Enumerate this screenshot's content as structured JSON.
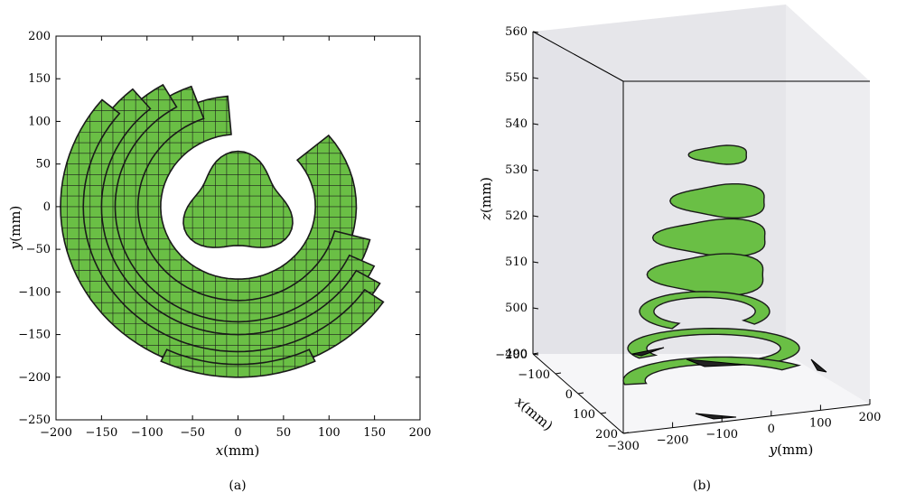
{
  "chart_data": [
    {
      "type": "scatter",
      "caption": "(a)",
      "xlabel_var": "x",
      "xlabel_unit": "(mm)",
      "ylabel_var": "y",
      "ylabel_unit": "(mm)",
      "xlim": [
        -200,
        200
      ],
      "ylim": [
        -250,
        200
      ],
      "xticks": [
        -200,
        -150,
        -100,
        -50,
        0,
        50,
        100,
        150,
        200
      ],
      "yticks": [
        -250,
        -200,
        -150,
        -100,
        -50,
        0,
        50,
        100,
        150,
        200
      ],
      "fill_color": "#6abf45",
      "edge_color": "#1a1a1a",
      "regions": [
        {
          "center": [
            0,
            0
          ],
          "r_inner": 0,
          "r_outer": 65,
          "arc_deg": [
            0,
            360
          ]
        },
        {
          "center": [
            0,
            0
          ],
          "r_inner": 85,
          "r_outer": 130,
          "arc_deg": [
            95,
            400
          ]
        },
        {
          "center": [
            0,
            0
          ],
          "r_inner": 110,
          "r_outer": 150,
          "arc_deg": [
            110,
            345
          ]
        },
        {
          "center": [
            0,
            0
          ],
          "r_inner": 135,
          "r_outer": 165,
          "arc_deg": [
            120,
            335
          ]
        },
        {
          "center": [
            0,
            0
          ],
          "r_inner": 150,
          "r_outer": 180,
          "arc_deg": [
            130,
            330
          ]
        },
        {
          "center": [
            0,
            0
          ],
          "r_inner": 170,
          "r_outer": 195,
          "arc_deg": [
            140,
            325
          ]
        },
        {
          "center": [
            0,
            0
          ],
          "r_inner": 185,
          "r_outer": 200,
          "arc_deg": [
            245,
            295
          ]
        }
      ],
      "grid": false
    },
    {
      "type": "scatter",
      "caption": "(b)",
      "xlabel_var": "x",
      "xlabel_unit": "(mm)",
      "ylabel_var": "y",
      "ylabel_unit": "(mm)",
      "zlabel_var": "z",
      "zlabel_unit": "(mm)",
      "xlim": [
        -200,
        200
      ],
      "ylim": [
        -300,
        200
      ],
      "zlim": [
        490,
        560
      ],
      "xticks": [
        -200,
        -100,
        0,
        100,
        200
      ],
      "yticks": [
        -300,
        -200,
        -100,
        0,
        100,
        200
      ],
      "zticks": [
        490,
        500,
        510,
        520,
        530,
        540,
        550,
        560
      ],
      "fill_color": "#6abf45",
      "edge_color": "#1a1a1a",
      "slices_z": [
        495,
        505,
        515,
        525,
        535,
        545
      ],
      "grid": false
    }
  ]
}
